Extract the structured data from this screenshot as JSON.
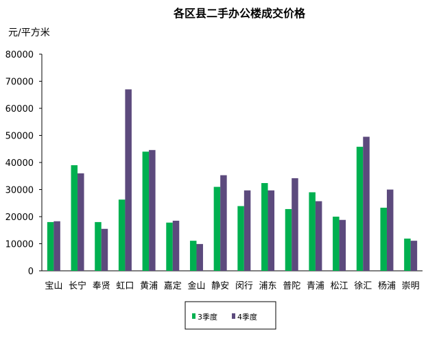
{
  "chart_data": {
    "type": "bar",
    "title": "各区县二手办公楼成交价格",
    "ylabel": "元/平方米",
    "xlabel": "",
    "ylim": [
      0,
      80000
    ],
    "yticks": [
      "0",
      "10000",
      "20000",
      "30000",
      "40000",
      "50000",
      "60000",
      "70000",
      "80000"
    ],
    "categories": [
      "宝山",
      "长宁",
      "奉贤",
      "虹口",
      "黄浦",
      "嘉定",
      "金山",
      "静安",
      "闵行",
      "浦东",
      "普陀",
      "青浦",
      "松江",
      "徐汇",
      "杨浦",
      "崇明"
    ],
    "series": [
      {
        "name": "3季度",
        "color": "#00b050",
        "values": [
          18000,
          39000,
          18000,
          26300,
          44000,
          17800,
          11100,
          31000,
          23900,
          32400,
          22800,
          29000,
          20000,
          45800,
          23300,
          11900
        ]
      },
      {
        "name": "4季度",
        "color": "#5c4a7d",
        "values": [
          18300,
          36000,
          15500,
          67000,
          44600,
          18500,
          9900,
          35300,
          29700,
          29700,
          34200,
          25700,
          18800,
          49500,
          30000,
          11100
        ]
      }
    ],
    "grid": false,
    "legend_position": "bottom-center"
  }
}
